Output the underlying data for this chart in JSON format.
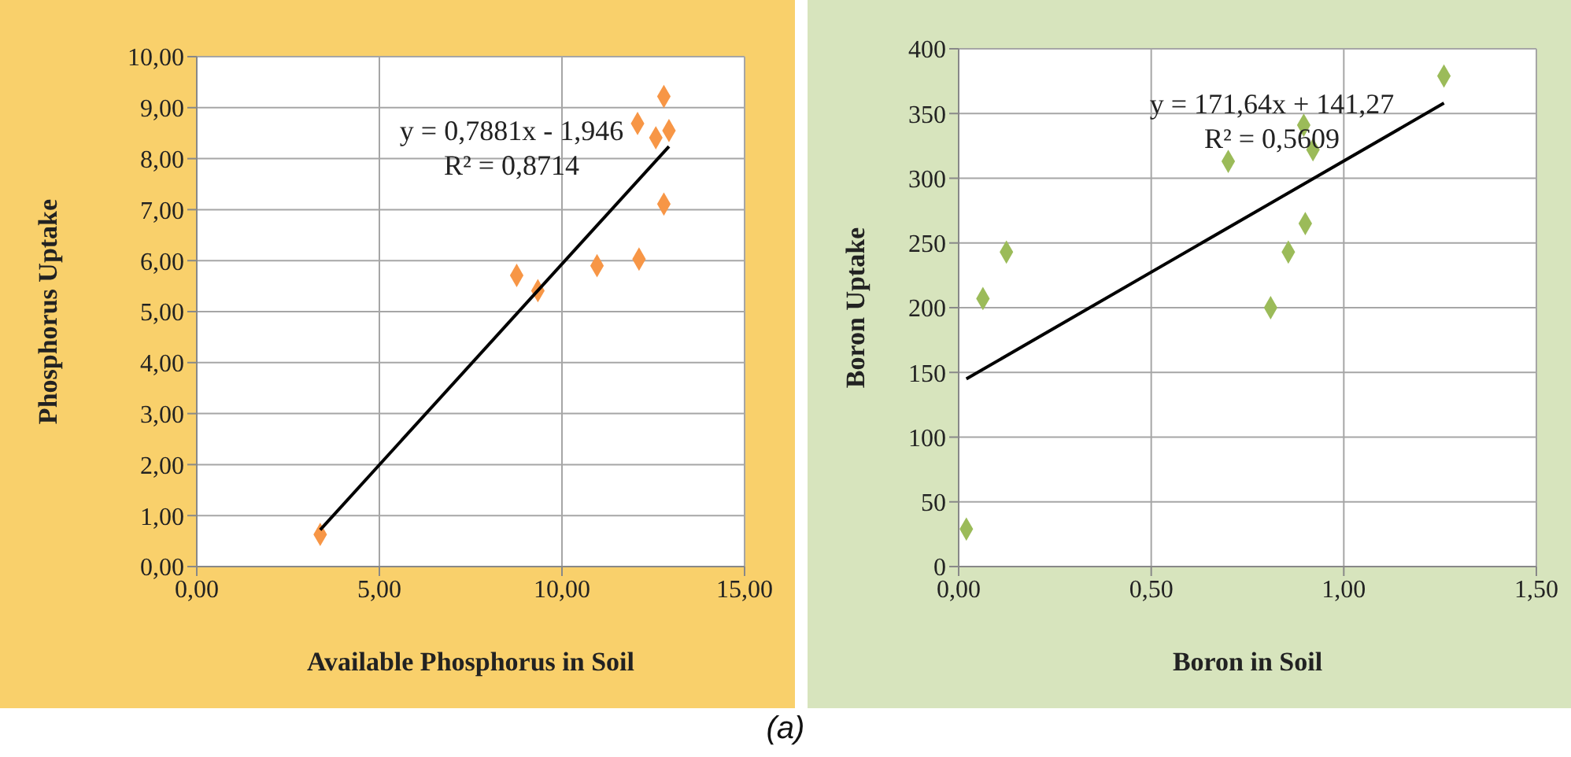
{
  "chart_data": [
    {
      "type": "scatter",
      "xlabel": "Available Phosphorus in Soil",
      "ylabel": "Phosphorus Uptake",
      "marker": "diamond",
      "grid": true,
      "x": [
        3.38,
        8.76,
        9.34,
        10.96,
        12.11,
        12.07,
        12.79,
        12.57,
        12.93,
        12.79
      ],
      "series": [
        {
          "color": "#f79646",
          "values": [
            0.63,
            5.71,
            5.41,
            5.9,
            6.03,
            8.69,
            9.22,
            8.41,
            8.55,
            7.11
          ]
        },
        {
          "type": "line",
          "color": "#000000",
          "marker": "none",
          "x": [
            3.38,
            12.93
          ],
          "values": [
            0.72,
            8.24
          ]
        }
      ],
      "xlim": [
        0,
        15
      ],
      "xticks": [
        {
          "value": 0,
          "label": "0,00"
        },
        {
          "value": 5,
          "label": "5,00"
        },
        {
          "value": 10,
          "label": "10,00"
        },
        {
          "value": 15,
          "label": "15,00"
        }
      ],
      "ylim": [
        0,
        10
      ],
      "yticks": [
        {
          "value": 0,
          "label": "0,00"
        },
        {
          "value": 1,
          "label": "1,00"
        },
        {
          "value": 2,
          "label": "2,00"
        },
        {
          "value": 3,
          "label": "3,00"
        },
        {
          "value": 4,
          "label": "4,00"
        },
        {
          "value": 5,
          "label": "5,00"
        },
        {
          "value": 6,
          "label": "6,00"
        },
        {
          "value": 7,
          "label": "7,00"
        },
        {
          "value": 8,
          "label": "8,00"
        },
        {
          "value": 9,
          "label": "9,00"
        },
        {
          "value": 10,
          "label": "10,00"
        }
      ],
      "annotations": [
        "y = 0,7881x - 1,946",
        "R² = 0,8714",
        "(a)"
      ]
    },
    {
      "type": "scatter",
      "xlabel": "Boron in Soil",
      "ylabel": "Boron Uptake",
      "marker": "diamond",
      "grid": true,
      "x": [
        0.02,
        0.063,
        0.124,
        0.7,
        0.81,
        0.856,
        0.9,
        0.896,
        0.92,
        1.26
      ],
      "series": [
        {
          "color": "#9bbb59",
          "values": [
            29,
            207,
            243,
            313,
            200,
            243,
            265,
            341,
            322,
            379
          ]
        },
        {
          "type": "line",
          "color": "#000000",
          "marker": "none",
          "x": [
            0.02,
            1.26
          ],
          "values": [
            145,
            358
          ]
        }
      ],
      "xlim": [
        0,
        1.5
      ],
      "xticks": [
        {
          "value": 0,
          "label": "0,00"
        },
        {
          "value": 0.5,
          "label": "0,50"
        },
        {
          "value": 1,
          "label": "1,00"
        },
        {
          "value": 1.5,
          "label": "1,50"
        }
      ],
      "ylim": [
        0,
        400
      ],
      "yticks": [
        0,
        50,
        100,
        150,
        200,
        250,
        300,
        350,
        400
      ],
      "annotations": [
        "y = 171,64x + 141,27",
        "R² = 0,5609"
      ]
    }
  ]
}
